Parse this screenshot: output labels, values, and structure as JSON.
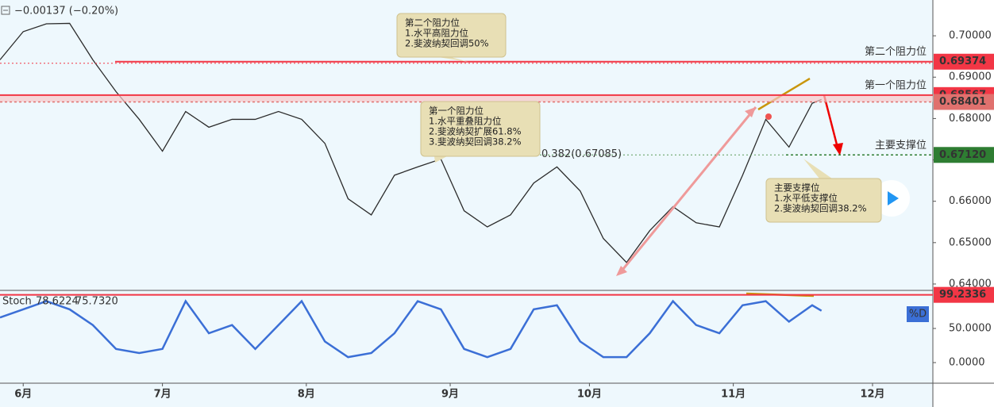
{
  "header": {
    "change": "−0.00137 (−0.20%)"
  },
  "chart_data": [
    {
      "type": "line",
      "x": [
        -5,
        0,
        5,
        10,
        15,
        20,
        25,
        30,
        35,
        40,
        45,
        50,
        55,
        60,
        65,
        70,
        75,
        80,
        85,
        90,
        95,
        100,
        105,
        110,
        115,
        120,
        125,
        130,
        135,
        140,
        145,
        150,
        155,
        160,
        165,
        170,
        172
      ],
      "values": [
        0.6942,
        0.701,
        0.7029,
        0.703,
        0.6942,
        0.6865,
        0.6798,
        0.6721,
        0.6817,
        0.6779,
        0.6798,
        0.6798,
        0.6817,
        0.6798,
        0.674,
        0.6606,
        0.6567,
        0.6663,
        0.6683,
        0.6702,
        0.6577,
        0.6538,
        0.6567,
        0.6644,
        0.6683,
        0.6625,
        0.651,
        0.6452,
        0.6529,
        0.6587,
        0.6548,
        0.6538,
        0.6663,
        0.6798,
        0.6731,
        0.6837,
        0.6846
      ],
      "color": "#2b2b2b",
      "xlim": [
        -5,
        196
      ],
      "ylim": [
        0.63846,
        0.70865
      ],
      "xticks": [
        {
          "value": 0,
          "label": "6月"
        },
        {
          "value": 30,
          "label": "7月"
        },
        {
          "value": 61,
          "label": "8月"
        },
        {
          "value": 92,
          "label": "9月"
        },
        {
          "value": 122,
          "label": "10月"
        },
        {
          "value": 153,
          "label": "11月"
        },
        {
          "value": 183,
          "label": "12月"
        }
      ],
      "yticks": [
        {
          "value": 0.64,
          "label": "0.64000"
        },
        {
          "value": 0.65,
          "label": "0.65000"
        },
        {
          "value": 0.66,
          "label": "0.66000"
        },
        {
          "value": 0.67,
          "label": "0.67000"
        },
        {
          "value": 0.68,
          "label": "0.68000"
        },
        {
          "value": 0.69,
          "label": "0.69000"
        },
        {
          "value": 0.7,
          "label": "0.70000"
        }
      ],
      "levels": [
        {
          "label": "第二个阻力位",
          "value": 0.69374,
          "color": "#f23645"
        },
        {
          "label": "第一个阻力位",
          "value": 0.68567,
          "color": "#f23645"
        },
        {
          "value": 0.68401,
          "color": "#e0716e"
        },
        {
          "label": "主要支撑位",
          "value": 0.6712,
          "value_label": "0.67120",
          "color": "#2e7d32"
        }
      ],
      "fib_label": "0.382(0.67085)",
      "callouts": [
        [
          "第二个阻力位",
          "1.水平高阻力位",
          "2.斐波纳契回调50%"
        ],
        [
          "第一个阻力位",
          "1.水平重叠阻力位",
          "2.斐波纳契扩展61.8%",
          "3.斐波纳契回调38.2%"
        ],
        [
          "主要支撑位",
          "1.水平低支撑位",
          "2.斐波纳契回调38.2%"
        ]
      ]
    },
    {
      "type": "line",
      "title": "Stoch",
      "legend_values": [
        78.6224,
        {
          "value": 75.732,
          "label": "75.7320"
        }
      ],
      "series_label": "%D",
      "x": [
        -5,
        0,
        5,
        10,
        15,
        20,
        25,
        30,
        35,
        40,
        45,
        50,
        55,
        60,
        65,
        70,
        75,
        80,
        85,
        90,
        95,
        100,
        105,
        110,
        115,
        120,
        125,
        130,
        135,
        140,
        145,
        150,
        155,
        160,
        165,
        170,
        172
      ],
      "values": [
        66,
        78,
        90,
        78,
        55,
        20,
        14,
        20,
        90,
        43,
        55,
        20,
        55,
        90,
        31,
        8,
        14,
        43,
        90,
        78,
        20,
        8,
        20,
        78,
        84,
        31,
        8,
        8,
        43,
        90,
        55,
        43,
        84,
        90,
        60,
        84,
        76
      ],
      "color": "#3b6fd6",
      "xlim": [
        -5,
        196
      ],
      "ylim": [
        -30.2,
        104.65
      ],
      "yticks": [
        {
          "value": 0,
          "label": "0.0000"
        },
        {
          "value": 50,
          "label": "50.0000"
        }
      ],
      "levels": [
        {
          "value": 99.2336,
          "color": "#f23645"
        }
      ]
    }
  ]
}
